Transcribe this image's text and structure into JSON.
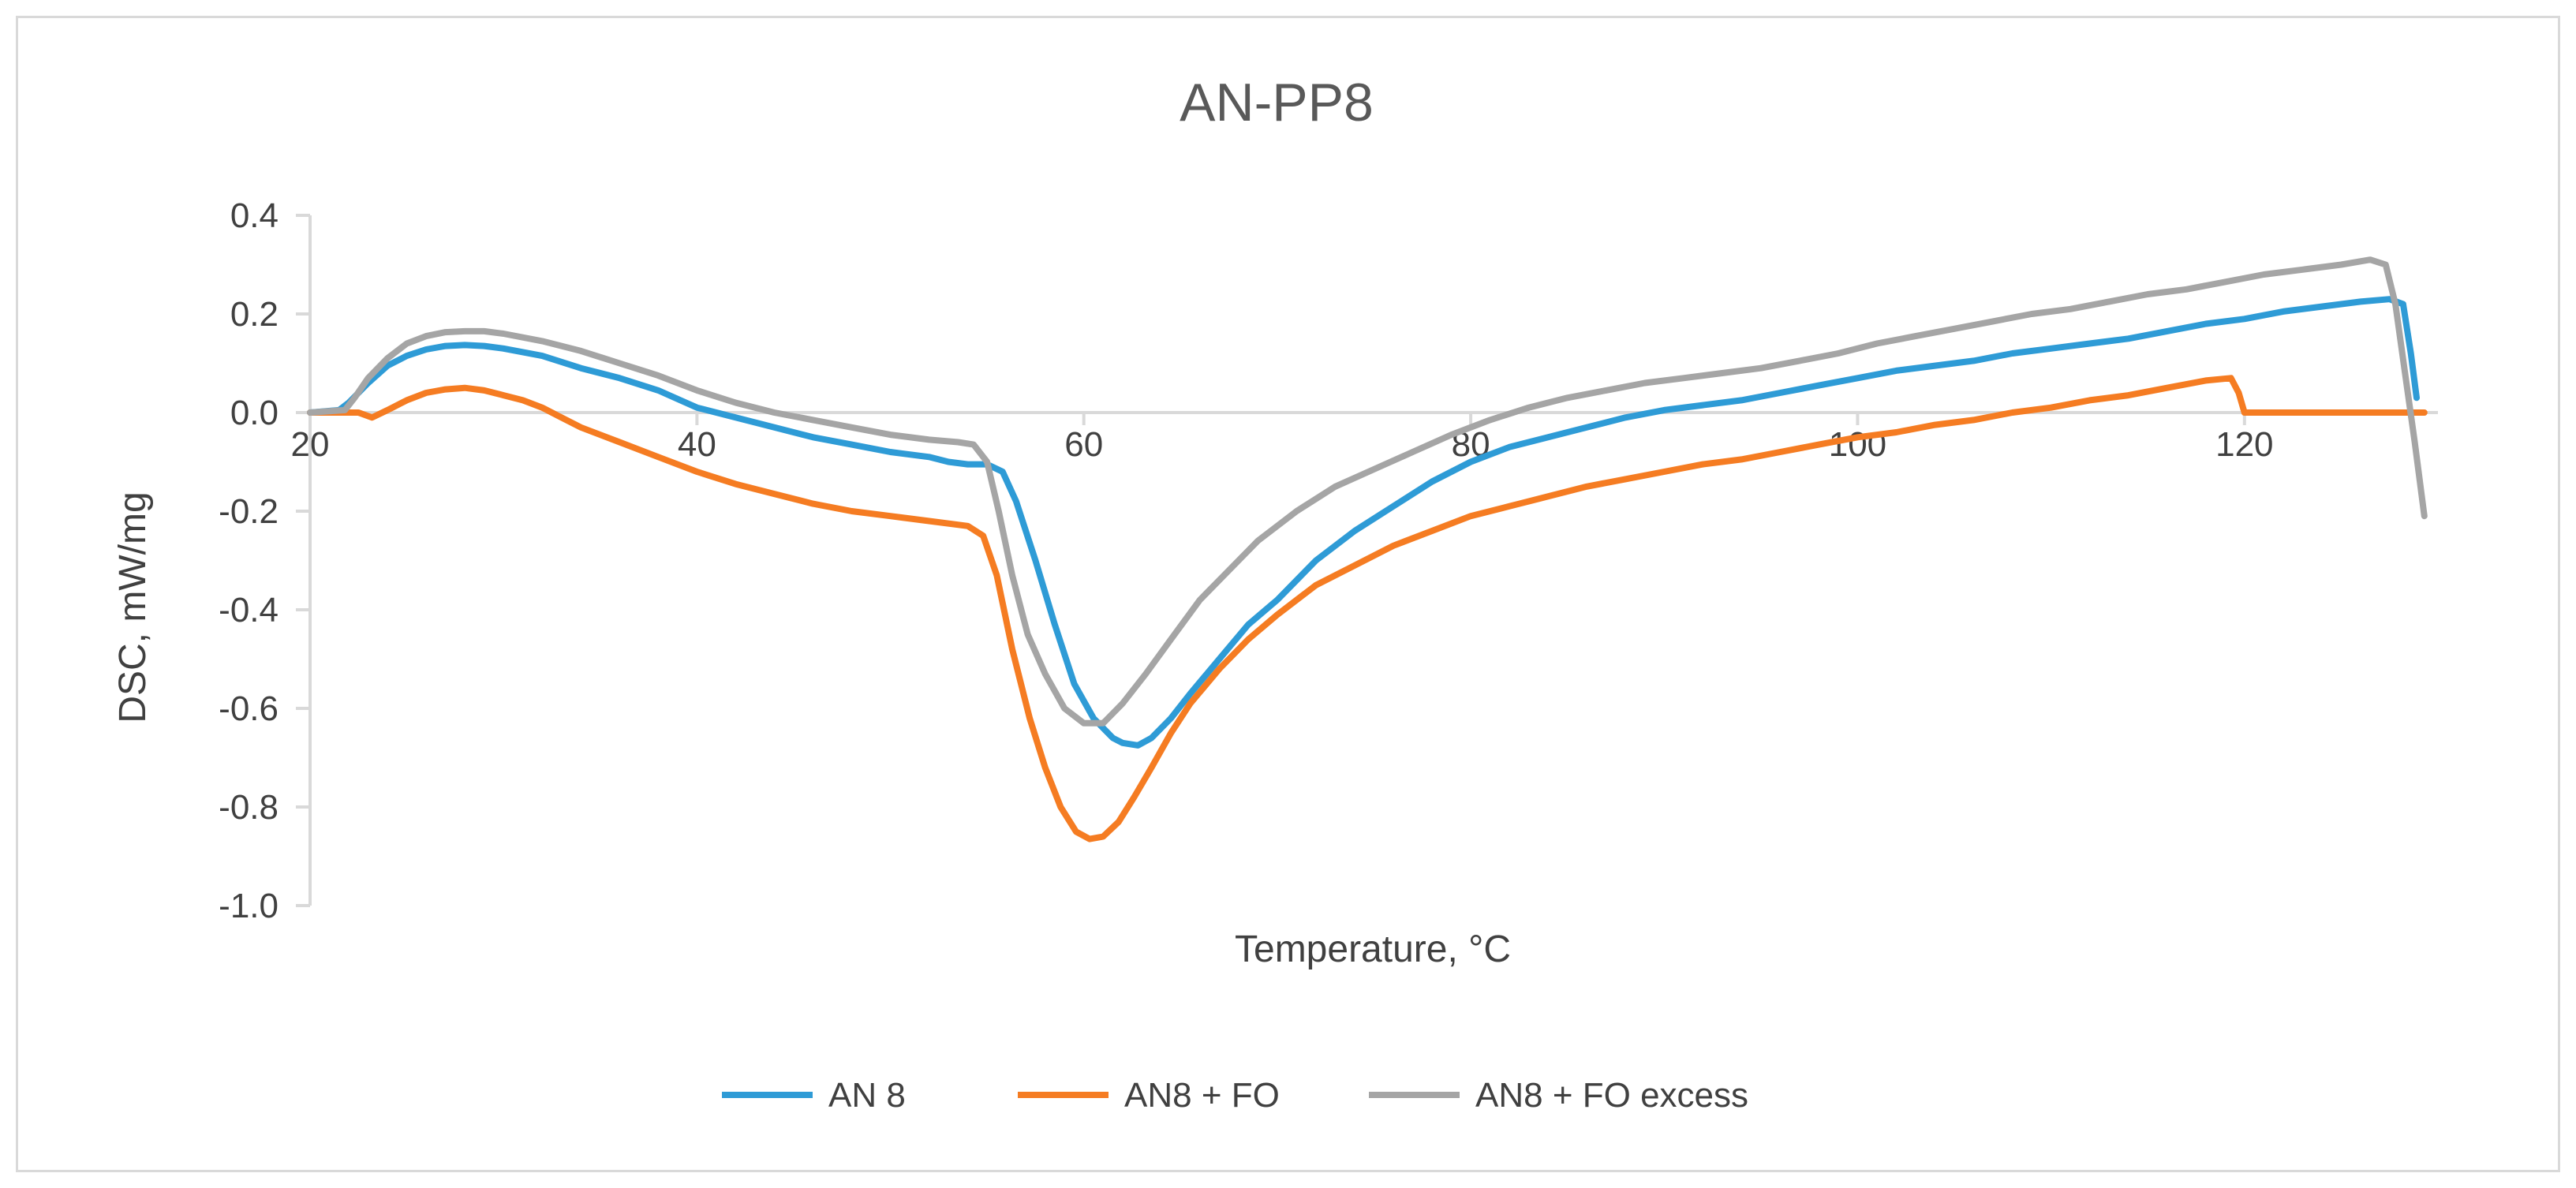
{
  "chart_data": {
    "type": "line",
    "title": "AN-PP8",
    "xlabel": "Temperature, °C",
    "ylabel": "DSC, mW/mg",
    "xlim": [
      20,
      130
    ],
    "ylim": [
      -1.0,
      0.4
    ],
    "x_ticks": [
      20,
      40,
      60,
      80,
      100,
      120
    ],
    "y_ticks": [
      0.4,
      0.2,
      0.0,
      -0.2,
      -0.4,
      -0.6,
      -0.8,
      -1.0
    ],
    "x_tick_labels": [
      "20",
      "40",
      "60",
      "80",
      "100",
      "120"
    ],
    "y_tick_labels": [
      "0.4",
      "0.2",
      "0.0",
      "-0.2",
      "-0.4",
      "-0.6",
      "-0.8",
      "-1.0"
    ],
    "grid": false,
    "legend_position": "bottom",
    "series": [
      {
        "name": "AN 8",
        "color": "#2e9bd6",
        "points": [
          [
            20,
            0
          ],
          [
            21.5,
            0.005
          ],
          [
            22,
            0.02
          ],
          [
            23,
            0.06
          ],
          [
            24,
            0.095
          ],
          [
            25,
            0.115
          ],
          [
            26,
            0.128
          ],
          [
            27,
            0.135
          ],
          [
            28,
            0.137
          ],
          [
            29,
            0.135
          ],
          [
            30,
            0.13
          ],
          [
            32,
            0.115
          ],
          [
            34,
            0.09
          ],
          [
            36,
            0.07
          ],
          [
            38,
            0.045
          ],
          [
            40,
            0.01
          ],
          [
            42,
            -0.01
          ],
          [
            44,
            -0.03
          ],
          [
            46,
            -0.05
          ],
          [
            48,
            -0.065
          ],
          [
            50,
            -0.08
          ],
          [
            52,
            -0.09
          ],
          [
            53,
            -0.1
          ],
          [
            54,
            -0.105
          ],
          [
            55,
            -0.105
          ],
          [
            55.8,
            -0.12
          ],
          [
            56.5,
            -0.18
          ],
          [
            57.5,
            -0.3
          ],
          [
            58.5,
            -0.43
          ],
          [
            59.5,
            -0.55
          ],
          [
            60.5,
            -0.62
          ],
          [
            61.5,
            -0.66
          ],
          [
            62,
            -0.67
          ],
          [
            62.8,
            -0.675
          ],
          [
            63.5,
            -0.66
          ],
          [
            64.5,
            -0.62
          ],
          [
            65.5,
            -0.57
          ],
          [
            67,
            -0.5
          ],
          [
            68.5,
            -0.43
          ],
          [
            70,
            -0.38
          ],
          [
            72,
            -0.3
          ],
          [
            74,
            -0.24
          ],
          [
            76,
            -0.19
          ],
          [
            78,
            -0.14
          ],
          [
            80,
            -0.1
          ],
          [
            82,
            -0.07
          ],
          [
            84,
            -0.05
          ],
          [
            86,
            -0.03
          ],
          [
            88,
            -0.01
          ],
          [
            90,
            0.005
          ],
          [
            92,
            0.015
          ],
          [
            94,
            0.025
          ],
          [
            96,
            0.04
          ],
          [
            98,
            0.055
          ],
          [
            100,
            0.07
          ],
          [
            102,
            0.085
          ],
          [
            104,
            0.095
          ],
          [
            106,
            0.105
          ],
          [
            108,
            0.12
          ],
          [
            110,
            0.13
          ],
          [
            112,
            0.14
          ],
          [
            114,
            0.15
          ],
          [
            116,
            0.165
          ],
          [
            118,
            0.18
          ],
          [
            120,
            0.19
          ],
          [
            122,
            0.205
          ],
          [
            124,
            0.215
          ],
          [
            126,
            0.225
          ],
          [
            127.5,
            0.23
          ],
          [
            128.2,
            0.22
          ],
          [
            128.6,
            0.12
          ],
          [
            128.9,
            0.03
          ]
        ]
      },
      {
        "name": "AN8 + FO",
        "color": "#f57c22",
        "points": [
          [
            20,
            0
          ],
          [
            22.5,
            0
          ],
          [
            23.2,
            -0.01
          ],
          [
            24,
            0.005
          ],
          [
            25,
            0.025
          ],
          [
            26,
            0.04
          ],
          [
            27,
            0.047
          ],
          [
            28,
            0.05
          ],
          [
            29,
            0.045
          ],
          [
            30,
            0.035
          ],
          [
            31,
            0.025
          ],
          [
            32,
            0.01
          ],
          [
            33,
            -0.01
          ],
          [
            34,
            -0.03
          ],
          [
            36,
            -0.06
          ],
          [
            38,
            -0.09
          ],
          [
            40,
            -0.12
          ],
          [
            42,
            -0.145
          ],
          [
            44,
            -0.165
          ],
          [
            46,
            -0.185
          ],
          [
            48,
            -0.2
          ],
          [
            50,
            -0.21
          ],
          [
            52,
            -0.22
          ],
          [
            54,
            -0.23
          ],
          [
            54.8,
            -0.25
          ],
          [
            55.5,
            -0.33
          ],
          [
            56.3,
            -0.48
          ],
          [
            57.2,
            -0.62
          ],
          [
            58,
            -0.72
          ],
          [
            58.8,
            -0.8
          ],
          [
            59.6,
            -0.85
          ],
          [
            60.3,
            -0.865
          ],
          [
            61,
            -0.86
          ],
          [
            61.8,
            -0.83
          ],
          [
            62.6,
            -0.78
          ],
          [
            63.5,
            -0.72
          ],
          [
            64.5,
            -0.65
          ],
          [
            65.5,
            -0.59
          ],
          [
            67,
            -0.52
          ],
          [
            68.5,
            -0.46
          ],
          [
            70,
            -0.41
          ],
          [
            72,
            -0.35
          ],
          [
            74,
            -0.31
          ],
          [
            76,
            -0.27
          ],
          [
            78,
            -0.24
          ],
          [
            80,
            -0.21
          ],
          [
            82,
            -0.19
          ],
          [
            84,
            -0.17
          ],
          [
            86,
            -0.15
          ],
          [
            88,
            -0.135
          ],
          [
            90,
            -0.12
          ],
          [
            92,
            -0.105
          ],
          [
            94,
            -0.095
          ],
          [
            96,
            -0.08
          ],
          [
            98,
            -0.065
          ],
          [
            100,
            -0.05
          ],
          [
            102,
            -0.04
          ],
          [
            104,
            -0.025
          ],
          [
            106,
            -0.015
          ],
          [
            108,
            0
          ],
          [
            110,
            0.01
          ],
          [
            112,
            0.025
          ],
          [
            114,
            0.035
          ],
          [
            116,
            0.05
          ],
          [
            118,
            0.065
          ],
          [
            119.3,
            0.07
          ],
          [
            119.7,
            0.04
          ],
          [
            120,
            0
          ],
          [
            122,
            0
          ],
          [
            125,
            0
          ],
          [
            128,
            0
          ],
          [
            129.3,
            0
          ]
        ]
      },
      {
        "name": "AN8 + FO excess",
        "color": "#a5a5a5",
        "points": [
          [
            20,
            0
          ],
          [
            21.8,
            0.005
          ],
          [
            22.3,
            0.03
          ],
          [
            23,
            0.07
          ],
          [
            24,
            0.11
          ],
          [
            25,
            0.14
          ],
          [
            26,
            0.155
          ],
          [
            27,
            0.163
          ],
          [
            28,
            0.165
          ],
          [
            29,
            0.165
          ],
          [
            30,
            0.16
          ],
          [
            32,
            0.145
          ],
          [
            34,
            0.125
          ],
          [
            36,
            0.1
          ],
          [
            38,
            0.075
          ],
          [
            40,
            0.045
          ],
          [
            42,
            0.02
          ],
          [
            44,
            0
          ],
          [
            46,
            -0.015
          ],
          [
            48,
            -0.03
          ],
          [
            50,
            -0.045
          ],
          [
            52,
            -0.055
          ],
          [
            53.5,
            -0.06
          ],
          [
            54.3,
            -0.065
          ],
          [
            55,
            -0.1
          ],
          [
            55.6,
            -0.2
          ],
          [
            56.3,
            -0.33
          ],
          [
            57.1,
            -0.45
          ],
          [
            58,
            -0.53
          ],
          [
            59,
            -0.6
          ],
          [
            60,
            -0.63
          ],
          [
            61,
            -0.63
          ],
          [
            62,
            -0.59
          ],
          [
            63.2,
            -0.53
          ],
          [
            64.5,
            -0.46
          ],
          [
            66,
            -0.38
          ],
          [
            67.5,
            -0.32
          ],
          [
            69,
            -0.26
          ],
          [
            71,
            -0.2
          ],
          [
            73,
            -0.15
          ],
          [
            75,
            -0.115
          ],
          [
            77,
            -0.08
          ],
          [
            79,
            -0.045
          ],
          [
            81,
            -0.015
          ],
          [
            83,
            0.01
          ],
          [
            85,
            0.03
          ],
          [
            87,
            0.045
          ],
          [
            89,
            0.06
          ],
          [
            91,
            0.07
          ],
          [
            93,
            0.08
          ],
          [
            95,
            0.09
          ],
          [
            97,
            0.105
          ],
          [
            99,
            0.12
          ],
          [
            101,
            0.14
          ],
          [
            103,
            0.155
          ],
          [
            105,
            0.17
          ],
          [
            107,
            0.185
          ],
          [
            109,
            0.2
          ],
          [
            111,
            0.21
          ],
          [
            113,
            0.225
          ],
          [
            115,
            0.24
          ],
          [
            117,
            0.25
          ],
          [
            119,
            0.265
          ],
          [
            121,
            0.28
          ],
          [
            123,
            0.29
          ],
          [
            125,
            0.3
          ],
          [
            126.5,
            0.31
          ],
          [
            127.3,
            0.3
          ],
          [
            127.8,
            0.22
          ],
          [
            128.3,
            0.08
          ],
          [
            128.8,
            -0.06
          ],
          [
            129.3,
            -0.21
          ]
        ]
      }
    ]
  }
}
